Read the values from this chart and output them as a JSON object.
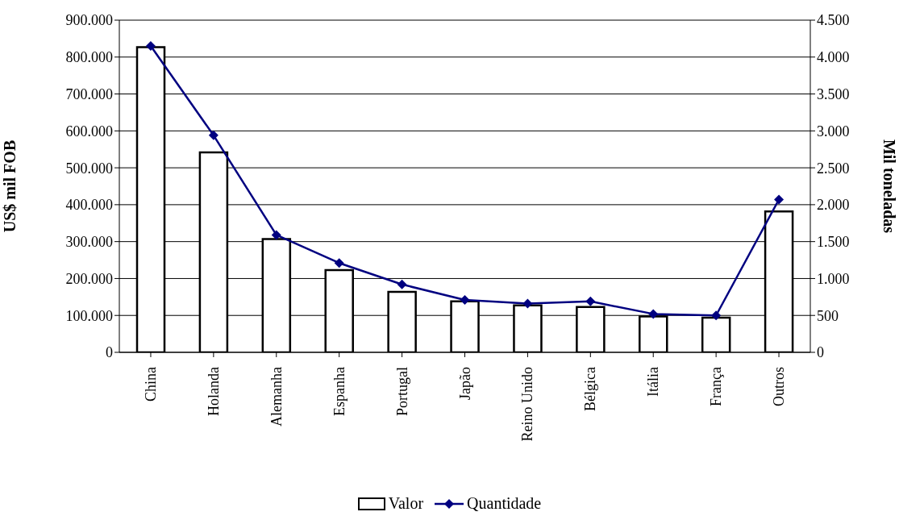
{
  "chart_data": {
    "type": "bar",
    "ylabel": "US$ mil FOB",
    "y2label": "Mil toneladas",
    "categories": [
      "China",
      "Holanda",
      "Alemanha",
      "Espanha",
      "Portugal",
      "Japão",
      "Reino Unido",
      "Bélgica",
      "Itália",
      "França",
      "Outros"
    ],
    "series": [
      {
        "name": "Valor",
        "color": "#ffffff",
        "values": [
          827000,
          542000,
          307000,
          223000,
          164000,
          138000,
          127000,
          123000,
          97000,
          94000,
          382000
        ]
      },
      {
        "name": "Quantidade",
        "type": "line",
        "axis": "y2",
        "color": "#000080",
        "marker": "diamond",
        "values": [
          4150,
          2940,
          1590,
          1210,
          920,
          710,
          660,
          690,
          520,
          500,
          2070
        ]
      }
    ],
    "ylim": [
      0,
      900000
    ],
    "yticks": [
      {
        "value": 0,
        "label": "0"
      },
      {
        "value": 100000,
        "label": "100.000"
      },
      {
        "value": 200000,
        "label": "200.000"
      },
      {
        "value": 300000,
        "label": "300.000"
      },
      {
        "value": 400000,
        "label": "400.000"
      },
      {
        "value": 500000,
        "label": "500.000"
      },
      {
        "value": 600000,
        "label": "600.000"
      },
      {
        "value": 700000,
        "label": "700.000"
      },
      {
        "value": 800000,
        "label": "800.000"
      },
      {
        "value": 900000,
        "label": "900.000"
      }
    ],
    "y2lim": [
      0,
      4500
    ],
    "y2ticks": [
      {
        "value": 0,
        "label": "0"
      },
      {
        "value": 500,
        "label": "500"
      },
      {
        "value": 1000,
        "label": "1.000"
      },
      {
        "value": 1500,
        "label": "1.500"
      },
      {
        "value": 2000,
        "label": "2.000"
      },
      {
        "value": 2500,
        "label": "2.500"
      },
      {
        "value": 3000,
        "label": "3.000"
      },
      {
        "value": 3500,
        "label": "3.500"
      },
      {
        "value": 4000,
        "label": "4.000"
      },
      {
        "value": 4500,
        "label": "4.500"
      }
    ],
    "grid": "y",
    "legend": "bottom"
  }
}
